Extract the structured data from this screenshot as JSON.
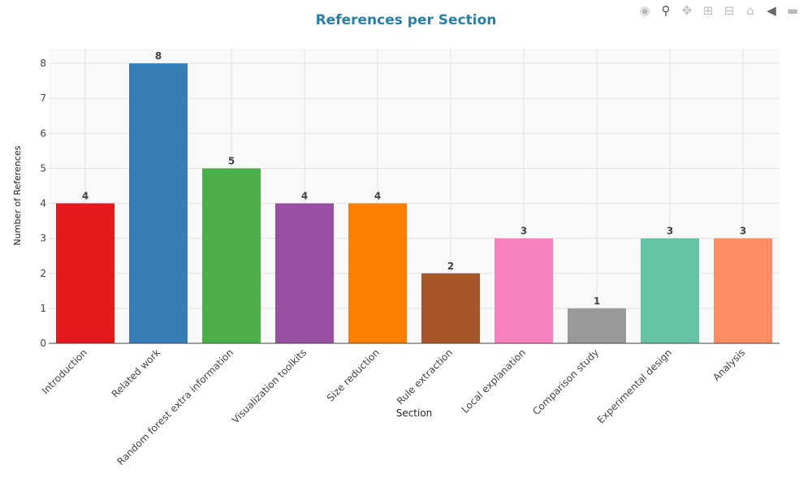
{
  "toolbar": {
    "icons": [
      "camera-icon",
      "zoom-icon",
      "pan-icon",
      "zoom-in-icon",
      "zoom-out-icon",
      "home-icon",
      "hover-closest-icon",
      "hover-compare-icon"
    ]
  },
  "chart_data": {
    "type": "bar",
    "title": "References per Section",
    "xlabel": "Section",
    "ylabel": "Number of References",
    "categories": [
      "Introduction",
      "Related work",
      "Random forest extra information",
      "Visualization toolkits",
      "Size reduction",
      "Rule extraction",
      "Local explanation",
      "Comparison study",
      "Experimental design",
      "Analysis"
    ],
    "values": [
      4,
      8,
      5,
      4,
      4,
      2,
      3,
      1,
      3,
      3
    ],
    "colors": [
      "#e41a1c",
      "#377eb8",
      "#4daf4a",
      "#984ea3",
      "#ff7f00",
      "#a65628",
      "#f781bf",
      "#999999",
      "#66c2a5",
      "#fc8d62"
    ],
    "yticks": [
      "0",
      "1",
      "2",
      "3",
      "4",
      "5",
      "6",
      "7",
      "8"
    ],
    "ylim": [
      0,
      8.42
    ],
    "grid": true,
    "title_color": "#2a7fa8",
    "plot_bg": "#f9f9f9"
  }
}
